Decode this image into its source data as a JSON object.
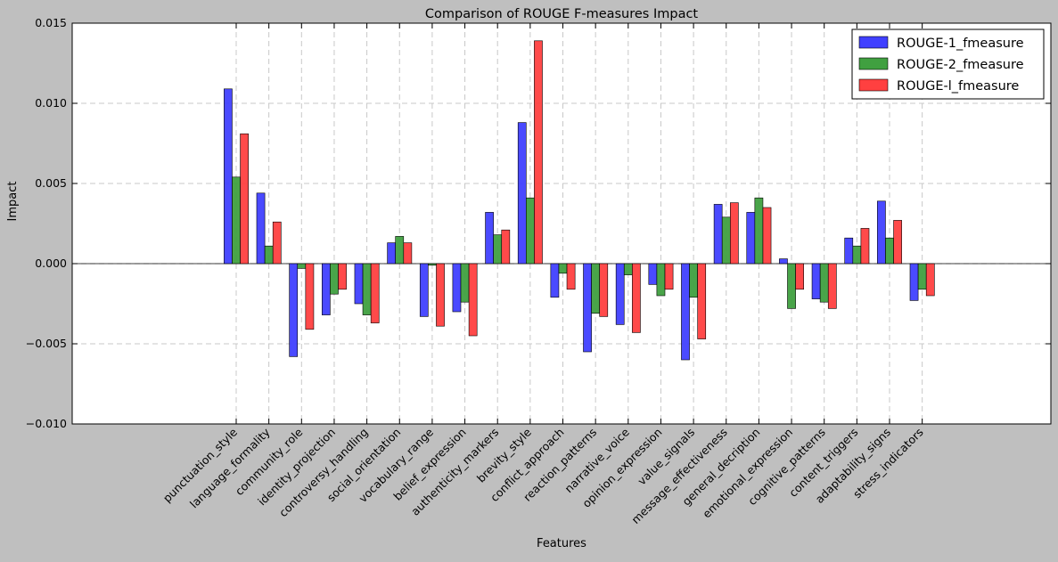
{
  "chart_data": {
    "type": "bar",
    "title": "Comparison of ROUGE F-measures Impact",
    "xlabel": "Features",
    "ylabel": "Impact",
    "ylim": [
      -0.01,
      0.015
    ],
    "yticks": [
      -0.01,
      -0.005,
      0.0,
      0.005,
      0.01,
      0.015
    ],
    "ytick_labels": [
      "−0.010",
      "−0.005",
      "0.000",
      "0.005",
      "0.010",
      "0.015"
    ],
    "grid": true,
    "legend_position": "top-right",
    "categories": [
      "punctuation_style",
      "language_formality",
      "community_role",
      "identity_projection",
      "controversy_handling",
      "social_orientation",
      "vocabulary_range",
      "belief_expression",
      "authenticity_markers",
      "brevity_style",
      "conflict_approach",
      "reaction_patterns",
      "narrative_voice",
      "opinion_expression",
      "value_signals",
      "message_effectiveness",
      "general_decription",
      "emotional_expression",
      "cognitive_patterns",
      "content_triggers",
      "adaptability_signs",
      "stress_indicators"
    ],
    "series": [
      {
        "name": "ROUGE-1_fmeasure",
        "color": "#4040ff",
        "values": [
          0.0109,
          0.0044,
          -0.0058,
          -0.0032,
          -0.0025,
          0.0013,
          -0.0033,
          -0.003,
          0.0032,
          0.0088,
          -0.0021,
          -0.0055,
          -0.0038,
          -0.0013,
          -0.006,
          0.0037,
          0.0032,
          0.0003,
          -0.0022,
          0.0016,
          0.0039,
          -0.0023
        ]
      },
      {
        "name": "ROUGE-2_fmeasure",
        "color": "#40a040",
        "values": [
          0.0054,
          0.0011,
          -0.0003,
          -0.0019,
          -0.0032,
          0.0017,
          -0.0001,
          -0.0024,
          0.0018,
          0.0041,
          -0.0006,
          -0.0031,
          -0.0007,
          -0.002,
          -0.0021,
          0.0029,
          0.0041,
          -0.0028,
          -0.0024,
          0.0011,
          0.0016,
          -0.0016
        ]
      },
      {
        "name": "ROUGE-l_fmeasure",
        "color": "#ff4040",
        "values": [
          0.0081,
          0.0026,
          -0.0041,
          -0.0016,
          -0.0037,
          0.0013,
          -0.0039,
          -0.0045,
          0.0021,
          0.0139,
          -0.0016,
          -0.0033,
          -0.0043,
          -0.0016,
          -0.0047,
          0.0038,
          0.0035,
          -0.0016,
          -0.0028,
          0.0022,
          0.0027,
          -0.002
        ]
      }
    ]
  }
}
